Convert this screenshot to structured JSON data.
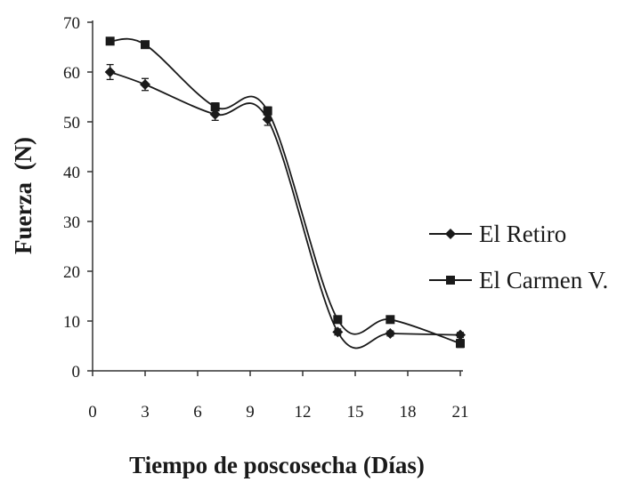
{
  "chart_data": {
    "type": "line",
    "title": "",
    "xlabel": "Tiempo de poscosecha (Días)",
    "ylabel": "Fuerza  (N)",
    "xlim": [
      0,
      21
    ],
    "ylim": [
      0,
      70
    ],
    "x_ticks": [
      0,
      3,
      6,
      9,
      12,
      15,
      18,
      21
    ],
    "y_ticks": [
      0,
      10,
      20,
      30,
      40,
      50,
      60,
      70
    ],
    "x_tick_labels": [
      "0",
      "3",
      "6",
      "9",
      "12",
      "15",
      "18",
      "21"
    ],
    "y_tick_labels": [
      "0",
      "10",
      "20",
      "30",
      "40",
      "50",
      "60",
      "70"
    ],
    "grid": false,
    "smooth": true,
    "legend_position": "right",
    "error_bars": true,
    "series": [
      {
        "name": "El Retiro",
        "marker": "diamond",
        "color": "#1a1a1a",
        "x": [
          1,
          3,
          7,
          10,
          14,
          17,
          21
        ],
        "y": [
          60,
          57.5,
          51.5,
          50.5,
          7.8,
          7.5,
          7.2
        ],
        "err": [
          1.5,
          1.2,
          1.2,
          1.2,
          0.6,
          0.5,
          0.5
        ]
      },
      {
        "name": "El Carmen V.",
        "marker": "square",
        "color": "#1a1a1a",
        "x": [
          1,
          3,
          7,
          10,
          14,
          17,
          21
        ],
        "y": [
          66.2,
          65.5,
          53,
          52.2,
          10.3,
          10.3,
          5.5
        ],
        "err": [
          0.6,
          0.6,
          0.8,
          0.8,
          0.6,
          0.5,
          0.8
        ]
      }
    ]
  }
}
